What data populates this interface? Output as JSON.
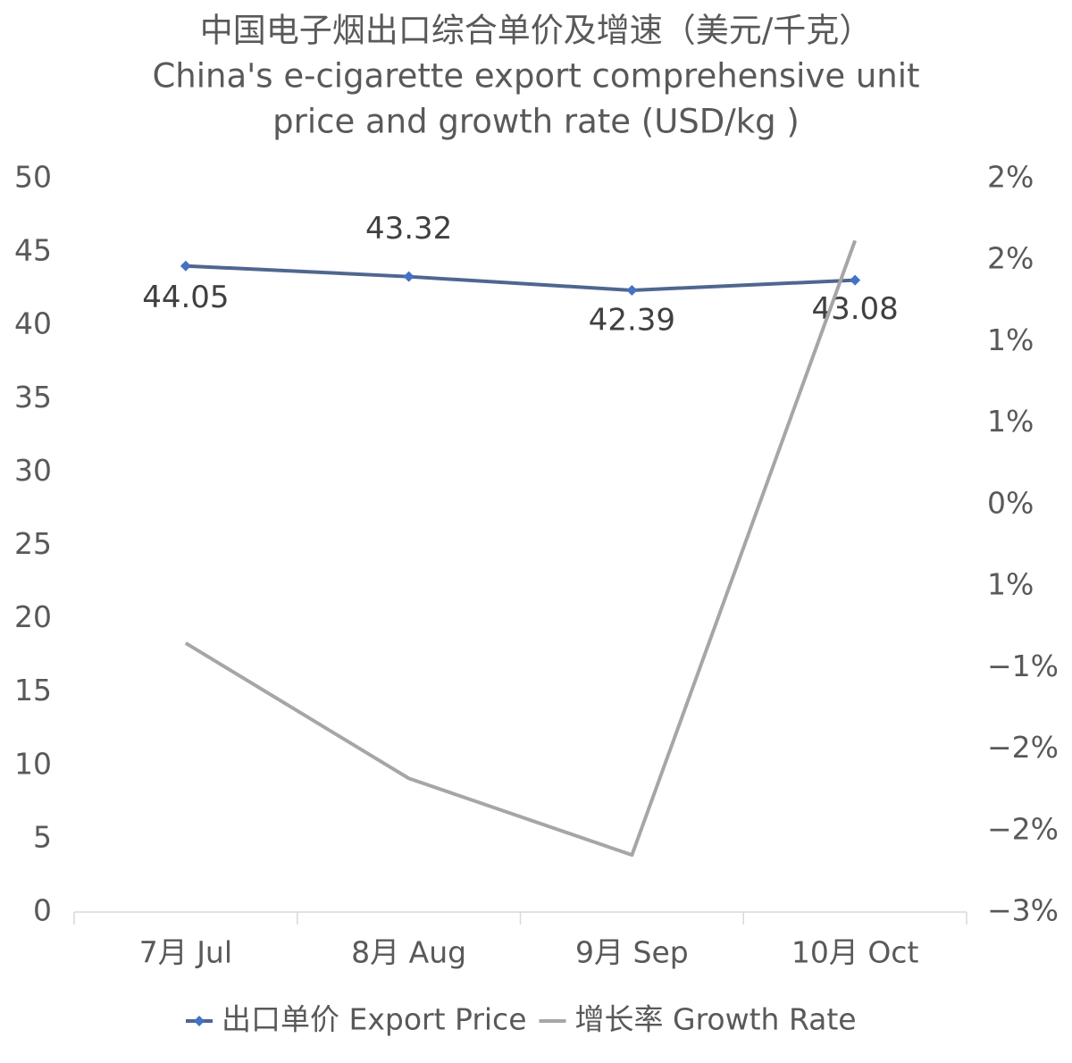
{
  "chart_data": {
    "type": "line",
    "title": [
      "中国电子烟出口综合单价及增速（美元/千克）",
      "China's e-cigarette export comprehensive unit",
      "price and growth rate (USD/kg )"
    ],
    "categories": [
      "7月 Jul",
      "8月 Aug",
      "9月 Sep",
      "10月 Oct"
    ],
    "series": [
      {
        "name": "出口单价 Export Price",
        "color": "#4f6690",
        "marker_color": "#4472c4",
        "data_labels": true,
        "values": [
          44.05,
          43.32,
          42.39,
          43.08
        ]
      },
      {
        "name": "增长率 Growth Rate",
        "color": "#a6a6a6",
        "axis": "y2",
        "values": [
          -0.85,
          -1.68,
          -2.15,
          1.62
        ]
      }
    ],
    "ylim": [
      0,
      50
    ],
    "yticks": [
      0,
      5,
      10,
      15,
      20,
      25,
      30,
      35,
      40,
      45,
      50
    ],
    "y2lim": [
      -2.5,
      2
    ],
    "y2ticks": [
      {
        "value": 2,
        "label": "2%"
      },
      {
        "value": 1.5,
        "label": "2%"
      },
      {
        "value": 1,
        "label": "1%"
      },
      {
        "value": 0.5,
        "label": "1%"
      },
      {
        "value": 0,
        "label": "0%"
      },
      {
        "value": -0.5,
        "label": "1%"
      },
      {
        "value": -1,
        "label": "−1%"
      },
      {
        "value": -1.5,
        "label": "−2%"
      },
      {
        "value": -2,
        "label": "−2%"
      },
      {
        "value": -2.5,
        "label": "−3%"
      }
    ],
    "grid": false,
    "legend": "bottom"
  }
}
